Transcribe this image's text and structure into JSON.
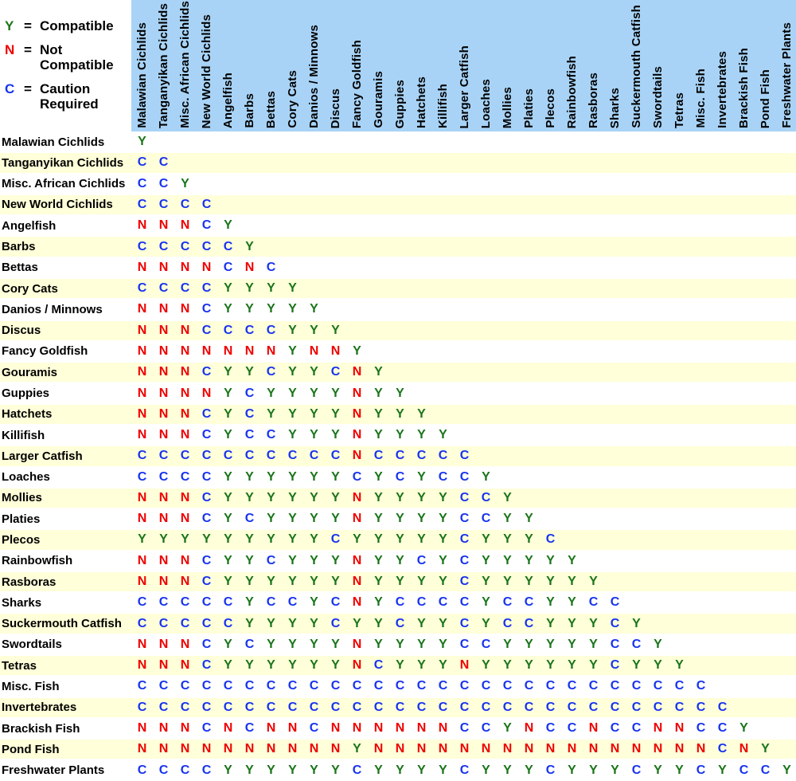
{
  "legend": {
    "items": [
      {
        "symbol": "Y",
        "eq": "=",
        "line1": "Compatible",
        "line2": "",
        "meaning": "Compatible"
      },
      {
        "symbol": "N",
        "eq": "=",
        "line1": "Not",
        "line2": "Compatible",
        "meaning": "Not Compatible"
      },
      {
        "symbol": "C",
        "eq": "=",
        "line1": "Caution",
        "line2": "Required",
        "meaning": "Caution Required"
      }
    ]
  },
  "chart_data": {
    "type": "table",
    "subtype": "triangular-compatibility-matrix",
    "value_meanings": {
      "Y": "Compatible",
      "N": "Not Compatible",
      "C": "Caution Required"
    },
    "categories": [
      "Malawian Cichlids",
      "Tanganyikan Cichlids",
      "Misc. African Cichlids",
      "New World Cichlids",
      "Angelfish",
      "Barbs",
      "Bettas",
      "Cory Cats",
      "Danios / Minnows",
      "Discus",
      "Fancy Goldfish",
      "Gouramis",
      "Guppies",
      "Hatchets",
      "Killifish",
      "Larger Catfish",
      "Loaches",
      "Mollies",
      "Platies",
      "Plecos",
      "Rainbowfish",
      "Rasboras",
      "Sharks",
      "Suckermouth Catfish",
      "Swordtails",
      "Tetras",
      "Misc. Fish",
      "Invertebrates",
      "Brackish Fish",
      "Pond Fish",
      "Freshwater Plants"
    ],
    "matrix_rows": [
      "Y",
      "CC",
      "CCY",
      "CCCC",
      "NNNCY",
      "CCCCCY",
      "NNNNCNC",
      "CCCCYYYY",
      "NNNCYYYYY",
      "NNNCCCCYYY",
      "NNNNNNNYNNY",
      "NNNCYYCYYCNY",
      "NNNNYCYYYYNYY",
      "NNNCYCYYYYNYYY",
      "NNNCYCCYYYNYYYY",
      "CCCCCCCCCCNCCCCC",
      "CCCCYYYYYYCYCYCCY",
      "NNNCYYYYYYNYYYYCCY",
      "NNNCYCYYYYNYYYYCCYY",
      "YYYYYYYYYCYYYYYCYYYC",
      "NNNCYYCYYYNYYCYCYYYYY",
      "NNNCYYYYYYNYYYYCYYYYYY",
      "CCCCCYCCYCNYCCCCYCCYYCC",
      "CCCCCYYYYCYYCYYCYCCYYYCY",
      "NNNCYCYYYYNYYYYCCYYYYYCCY",
      "NNNCYYYYYYNCYYYNYYYYYYCYYY",
      "CCCCCCCCCCCCCCCCCCCCCCCCCCC",
      "CCCCCCCCCCCCCCCCCCCCCCCCCCCC",
      "NNNCNCNNCNNNNNNCCYNCCNCCNNCCY",
      "NNNNNNNNNNYNNNNNNNNNNNNNNNNCNY",
      "CCCCYYYYYYCYYYYCYYYCYYYCYYCYCCY"
    ]
  },
  "colors": {
    "compatible_green": "#1A751A",
    "not_compatible_red": "#F00000",
    "caution_blue": "#1733EE",
    "header_bg": "#A8D3F6",
    "row_alt_bg": "#FFFFD9"
  }
}
